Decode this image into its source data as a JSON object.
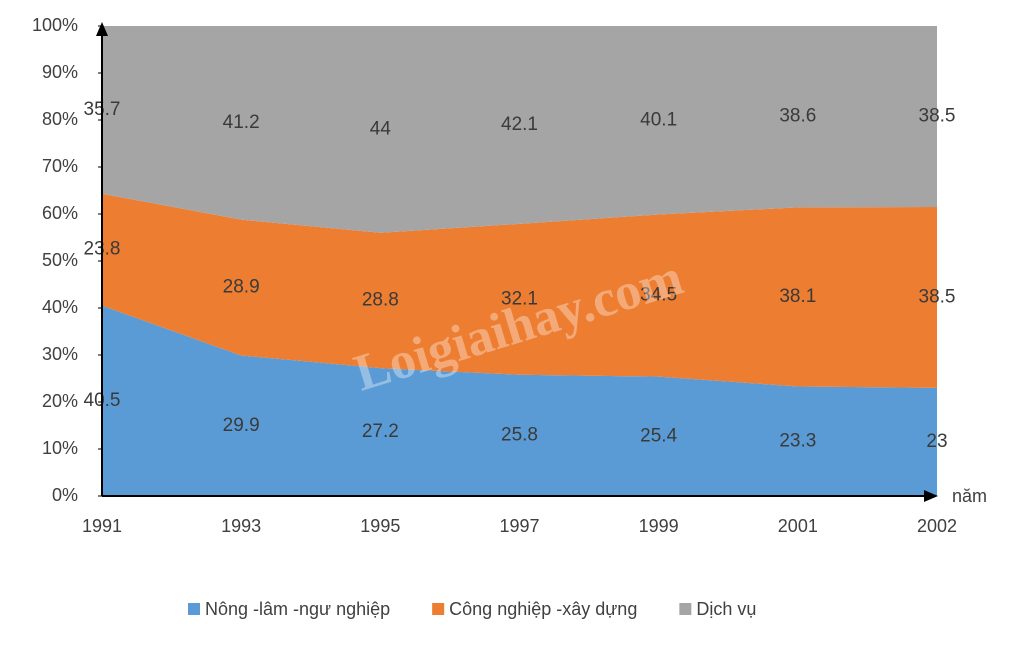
{
  "chart_data": {
    "type": "stacked-area",
    "categories": [
      "1991",
      "1993",
      "1995",
      "1997",
      "1999",
      "2001",
      "2002"
    ],
    "series": [
      {
        "name": "Nông -lâm -ngư nghiệp",
        "color": "#5b9bd5",
        "values": [
          40.5,
          29.9,
          27.2,
          25.8,
          25.4,
          23.3,
          23
        ]
      },
      {
        "name": "Công nghiệp -xây dựng",
        "color": "#ed7d31",
        "values": [
          23.8,
          28.9,
          28.8,
          32.1,
          34.5,
          38.1,
          38.5
        ]
      },
      {
        "name": "Dịch vụ",
        "color": "#a5a5a5",
        "values": [
          35.7,
          41.2,
          44,
          42.1,
          40.1,
          38.6,
          38.5
        ]
      }
    ],
    "ylim": [
      0,
      100
    ],
    "yticks": [
      {
        "value": 0,
        "label": "0%"
      },
      {
        "value": 10,
        "label": "10%"
      },
      {
        "value": 20,
        "label": "20%"
      },
      {
        "value": 30,
        "label": "30%"
      },
      {
        "value": 40,
        "label": "40%"
      },
      {
        "value": 50,
        "label": "50%"
      },
      {
        "value": 60,
        "label": "60%"
      },
      {
        "value": 70,
        "label": "70%"
      },
      {
        "value": 80,
        "label": "80%"
      },
      {
        "value": 90,
        "label": "90%"
      },
      {
        "value": 100,
        "label": "100%"
      }
    ],
    "xlabel": "năm",
    "watermark": "Loigiaihay.com",
    "legend": "bottom"
  }
}
